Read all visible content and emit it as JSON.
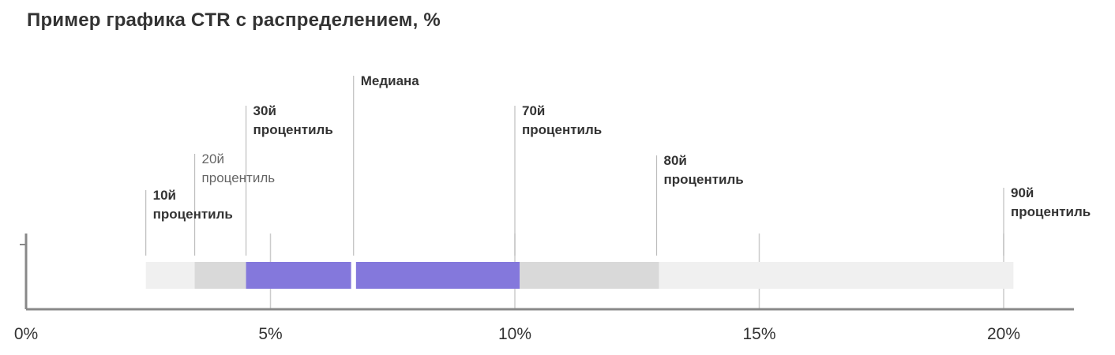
{
  "chart_data": {
    "type": "bar",
    "title": "Пример графика CTR с распределением, %",
    "xlabel": "",
    "ylabel": "",
    "xlim": [
      0,
      21.5
    ],
    "x_ticks": [
      {
        "value": 0,
        "label": "0%"
      },
      {
        "value": 5,
        "label": "5%"
      },
      {
        "value": 10,
        "label": "10%"
      },
      {
        "value": 15,
        "label": "15%"
      },
      {
        "value": 20,
        "label": "20%"
      }
    ],
    "segments": [
      {
        "from": 2.45,
        "to": 3.45,
        "color": "#f0f0f0"
      },
      {
        "from": 3.45,
        "to": 4.5,
        "color": "#d9d9d9"
      },
      {
        "from": 4.5,
        "to": 6.65,
        "color": "#8478dc"
      },
      {
        "from": 6.75,
        "to": 10.1,
        "color": "#8478dc"
      },
      {
        "from": 10.1,
        "to": 12.95,
        "color": "#d9d9d9"
      },
      {
        "from": 12.95,
        "to": 20.2,
        "color": "#f0f0f0"
      }
    ],
    "markers": [
      {
        "value": 2.45,
        "lines": [
          "10й",
          "процентиль"
        ],
        "style": "bold"
      },
      {
        "value": 3.45,
        "lines": [
          "20й",
          "процентиль"
        ],
        "style": "light"
      },
      {
        "value": 4.5,
        "lines": [
          "30й",
          "процентиль"
        ],
        "style": "bold"
      },
      {
        "value": 6.7,
        "lines": [
          "Медиана"
        ],
        "style": "bold"
      },
      {
        "value": 10.0,
        "lines": [
          "70й",
          "процентиль"
        ],
        "style": "bold"
      },
      {
        "value": 12.9,
        "lines": [
          "80й",
          "процентиль"
        ],
        "style": "bold"
      },
      {
        "value": 20.0,
        "lines": [
          "90й",
          "процентиль"
        ],
        "style": "bold"
      }
    ]
  }
}
